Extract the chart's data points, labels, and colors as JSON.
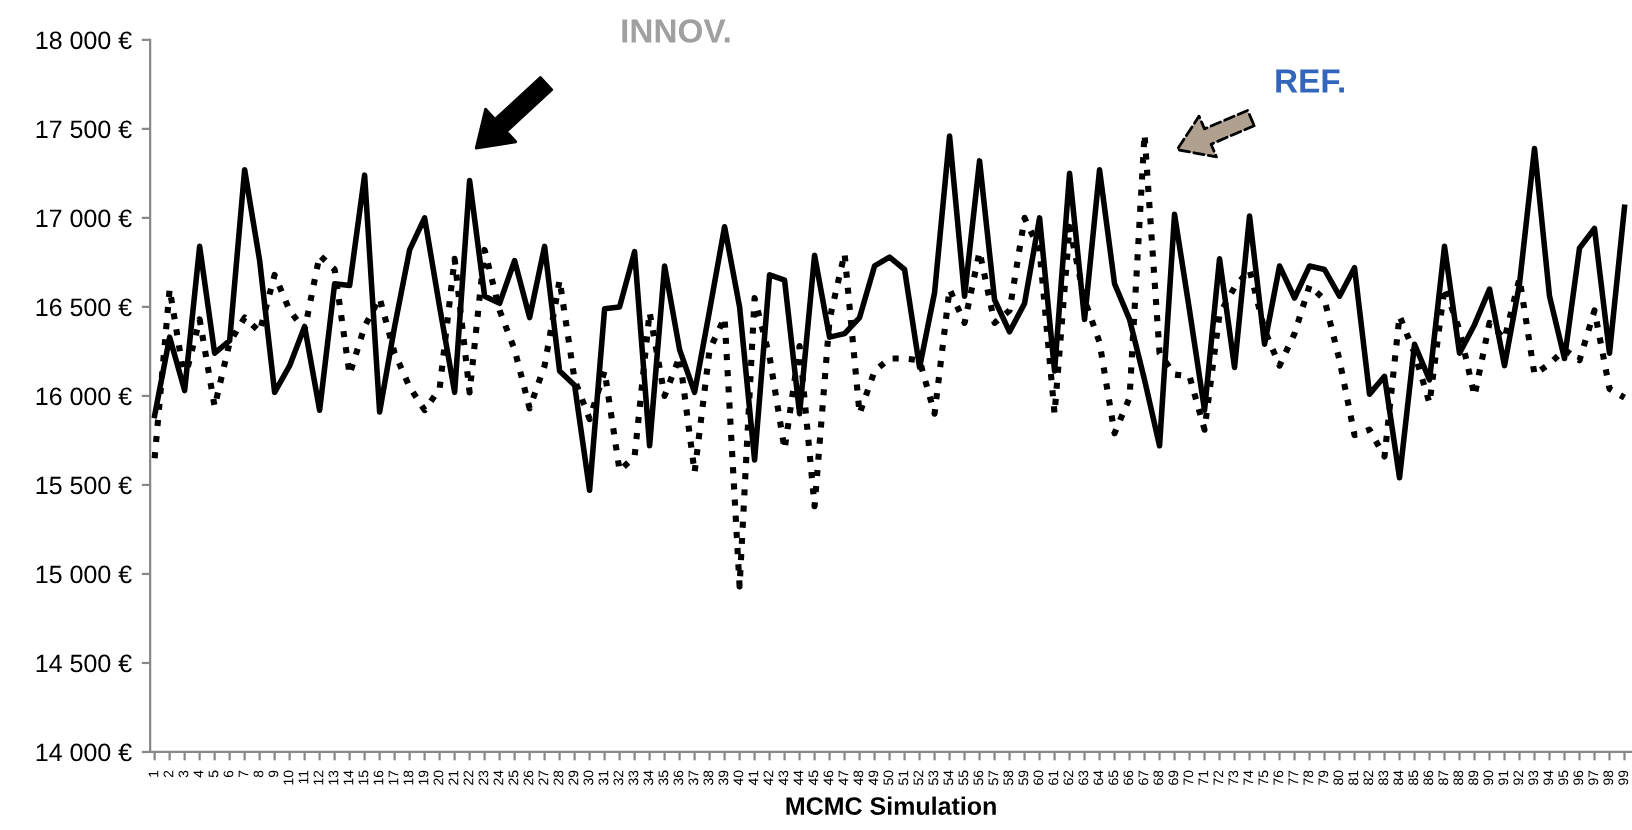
{
  "chart_data": {
    "type": "line",
    "xlabel": "MCMC Simulation",
    "categories": [
      "1",
      "2",
      "3",
      "4",
      "5",
      "6",
      "7",
      "8",
      "9",
      "10",
      "11",
      "12",
      "13",
      "14",
      "15",
      "16",
      "17",
      "18",
      "19",
      "20",
      "21",
      "22",
      "23",
      "24",
      "25",
      "26",
      "27",
      "28",
      "29",
      "30",
      "31",
      "32",
      "33",
      "34",
      "35",
      "36",
      "37",
      "38",
      "39",
      "40",
      "41",
      "42",
      "43",
      "44",
      "45",
      "46",
      "47",
      "48",
      "49",
      "50",
      "51",
      "52",
      "53",
      "54",
      "55",
      "56",
      "57",
      "58",
      "59",
      "60",
      "61",
      "62",
      "63",
      "64",
      "65",
      "66",
      "67",
      "68",
      "69",
      "70",
      "71",
      "72",
      "73",
      "74",
      "75",
      "76",
      "77",
      "78",
      "79",
      "80",
      "81",
      "82",
      "83",
      "84",
      "85",
      "86",
      "87",
      "88",
      "89",
      "90",
      "91",
      "92",
      "93",
      "94",
      "95",
      "96",
      "97",
      "98",
      "99"
    ],
    "series": [
      {
        "color": "#000000",
        "line_style": "solid",
        "values": [
          15890,
          16330,
          16030,
          16840,
          16240,
          16310,
          17270,
          16760,
          16020,
          16170,
          16390,
          15920,
          16630,
          16620,
          17240,
          15910,
          16390,
          16820,
          17000,
          16500,
          16020,
          17210,
          16560,
          16520,
          16760,
          16440,
          16840,
          16140,
          16060,
          15470,
          16490,
          16500,
          16810,
          15720,
          16730,
          16260,
          16020,
          16480,
          16950,
          16500,
          15640,
          16680,
          16650,
          15900,
          16790,
          16330,
          16350,
          16440,
          16730,
          16780,
          16710,
          16160,
          16580,
          17460,
          16560,
          17320,
          16540,
          16360,
          16520,
          17000,
          16140,
          17250,
          16430,
          17270,
          16630,
          16430,
          16090,
          15720,
          17020,
          16480,
          15920,
          16770,
          16160,
          17010,
          16290,
          16730,
          16550,
          16730,
          16710,
          16560,
          16720,
          16010,
          16110,
          15540,
          16290,
          16090,
          16840,
          16240,
          16400,
          16600,
          16170,
          16630,
          17390,
          16560,
          16210,
          16830,
          16940,
          16240,
          17060
        ]
      },
      {
        "color": "#000000",
        "line_style": "dotted",
        "values": [
          15650,
          16600,
          16090,
          16430,
          15940,
          16300,
          16440,
          16360,
          16680,
          16480,
          16370,
          16790,
          16710,
          16120,
          16390,
          16550,
          16240,
          16050,
          15920,
          16040,
          16770,
          16020,
          16820,
          16480,
          16260,
          15930,
          16170,
          16650,
          16090,
          15870,
          16140,
          15580,
          15660,
          16470,
          16000,
          16220,
          15570,
          16260,
          16440,
          14930,
          16550,
          16220,
          15700,
          16280,
          15380,
          16430,
          16800,
          15900,
          16140,
          16210,
          16210,
          16200,
          15900,
          16600,
          16410,
          16810,
          16410,
          16480,
          17000,
          16820,
          15900,
          16950,
          16540,
          16300,
          15790,
          15990,
          17470,
          16240,
          16120,
          16110,
          15810,
          16460,
          16610,
          16710,
          16370,
          16170,
          16350,
          16620,
          16540,
          16200,
          15780,
          15810,
          15660,
          16450,
          16240,
          15960,
          16610,
          16370,
          16000,
          16410,
          16320,
          16660,
          16120,
          16180,
          16260,
          16200,
          16480,
          16040,
          15990
        ]
      }
    ],
    "ylim": [
      14000,
      18000
    ],
    "yticks": [
      {
        "value": 14000,
        "label": "14 000 €"
      },
      {
        "value": 14500,
        "label": "14 500 €"
      },
      {
        "value": 15000,
        "label": "15 000 €"
      },
      {
        "value": 15500,
        "label": "15 500 €"
      },
      {
        "value": 16000,
        "label": "16 000 €"
      },
      {
        "value": 16500,
        "label": "16 500 €"
      },
      {
        "value": 17000,
        "label": "17 000 €"
      },
      {
        "value": 17500,
        "label": "17 500 €"
      },
      {
        "value": 18000,
        "label": "18 000 €"
      }
    ],
    "annotations": [
      "INNOV.",
      "REF."
    ],
    "grid": false,
    "legend": false
  }
}
